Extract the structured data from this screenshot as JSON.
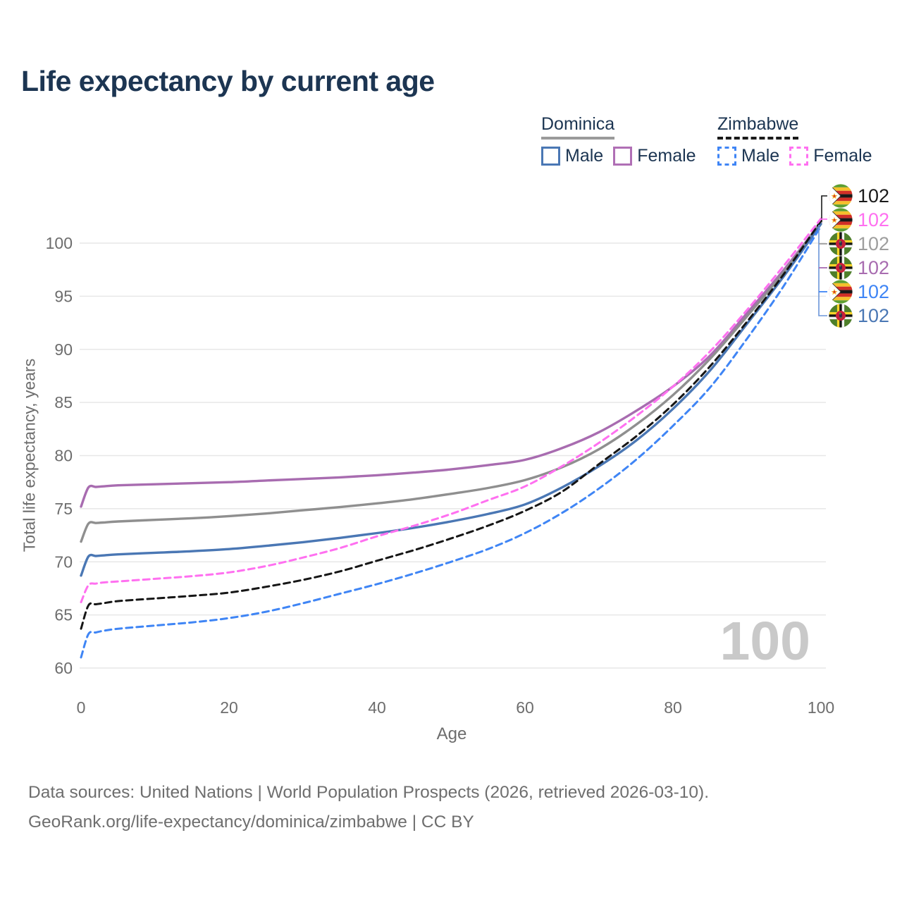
{
  "title": "Life expectancy by current age",
  "watermark": "100",
  "legend": {
    "groups": [
      {
        "label": "Dominica",
        "line_style": "solid",
        "line_color": "#9a9a9a",
        "items": [
          {
            "label": "Male",
            "color": "#4a77b4"
          },
          {
            "label": "Female",
            "color": "#b06fb5"
          }
        ]
      },
      {
        "label": "Zimbabwe",
        "line_style": "dashed",
        "line_color": "#1a1a1a",
        "items": [
          {
            "label": "Male",
            "color": "#3f85f5"
          },
          {
            "label": "Female",
            "color": "#ff70f0"
          }
        ]
      }
    ]
  },
  "y_axis": {
    "label": "Total life expectancy, years",
    "ticks": [
      60,
      65,
      70,
      75,
      80,
      85,
      90,
      95,
      100
    ]
  },
  "x_axis": {
    "label": "Age",
    "ticks": [
      0,
      20,
      40,
      60,
      80,
      100
    ]
  },
  "chart_data": {
    "type": "line",
    "title": "Life expectancy by current age",
    "xlabel": "Age",
    "ylabel": "Total life expectancy, years",
    "xlim": [
      0,
      100
    ],
    "ylim": [
      60,
      102.5
    ],
    "grid": "horizontal",
    "gridline_color": "#e7e7e7",
    "x": [
      0,
      1,
      2,
      3,
      5,
      10,
      15,
      20,
      25,
      30,
      35,
      40,
      45,
      50,
      55,
      60,
      65,
      70,
      75,
      80,
      85,
      90,
      95,
      100
    ],
    "series": [
      {
        "id": "dominica-female",
        "name": "Dominica Female",
        "country": "Dominica",
        "sex": "Female",
        "color": "#a86cb0",
        "dashed": false,
        "values": [
          75.2,
          77.0,
          77.05,
          77.1,
          77.2,
          77.3,
          77.4,
          77.5,
          77.65,
          77.8,
          77.95,
          78.15,
          78.4,
          78.7,
          79.1,
          79.6,
          80.7,
          82.2,
          84.2,
          86.5,
          89.4,
          93.4,
          97.5,
          101.95
        ]
      },
      {
        "id": "dominica-all",
        "name": "Dominica",
        "country": "Dominica",
        "sex": "Both",
        "color": "#8f8f8f",
        "dashed": false,
        "values": [
          71.9,
          73.6,
          73.65,
          73.7,
          73.8,
          73.95,
          74.1,
          74.3,
          74.55,
          74.85,
          75.15,
          75.5,
          75.9,
          76.4,
          76.95,
          77.7,
          78.9,
          80.6,
          82.9,
          85.7,
          89.1,
          93.1,
          97.3,
          102.0
        ]
      },
      {
        "id": "dominica-male",
        "name": "Dominica Male",
        "country": "Dominica",
        "sex": "Male",
        "color": "#4a77b4",
        "dashed": false,
        "values": [
          68.7,
          70.5,
          70.55,
          70.6,
          70.7,
          70.85,
          71.0,
          71.2,
          71.5,
          71.85,
          72.25,
          72.7,
          73.2,
          73.8,
          74.5,
          75.4,
          77.0,
          79.0,
          81.4,
          84.4,
          88.0,
          92.4,
          96.9,
          101.8
        ]
      },
      {
        "id": "zimbabwe-male",
        "name": "Zimbabwe Male",
        "country": "Zimbabwe",
        "sex": "Male",
        "color": "#3f85f5",
        "dashed": true,
        "values": [
          61.0,
          63.2,
          63.35,
          63.5,
          63.7,
          64.0,
          64.3,
          64.7,
          65.3,
          66.1,
          67.0,
          67.9,
          68.9,
          70.0,
          71.2,
          72.7,
          74.6,
          76.9,
          79.6,
          82.8,
          86.4,
          91.0,
          96.0,
          101.6
        ]
      },
      {
        "id": "zimbabwe-all",
        "name": "Zimbabwe",
        "country": "Zimbabwe",
        "sex": "Both",
        "color": "#161616",
        "dashed": true,
        "values": [
          63.7,
          65.9,
          66.0,
          66.1,
          66.3,
          66.55,
          66.8,
          67.1,
          67.65,
          68.3,
          69.1,
          70.1,
          71.1,
          72.2,
          73.4,
          74.8,
          76.6,
          79.2,
          81.8,
          84.8,
          88.4,
          92.6,
          97.1,
          102.1
        ]
      },
      {
        "id": "zimbabwe-female",
        "name": "Zimbabwe Female",
        "country": "Zimbabwe",
        "sex": "Female",
        "color": "#ff70f0",
        "dashed": true,
        "values": [
          66.2,
          67.8,
          67.95,
          68.05,
          68.15,
          68.4,
          68.65,
          69.0,
          69.6,
          70.4,
          71.3,
          72.4,
          73.4,
          74.5,
          75.8,
          77.1,
          79.0,
          81.2,
          83.7,
          86.5,
          89.8,
          93.7,
          97.9,
          102.3
        ]
      }
    ],
    "end_labels": [
      {
        "series": "Zimbabwe",
        "flag": "zimbabwe-flag",
        "value": "102",
        "color": "#1a1a1a"
      },
      {
        "series": "Zimbabwe Female",
        "flag": "zimbabwe-flag",
        "value": "102",
        "color": "#ff70f0"
      },
      {
        "series": "Dominica",
        "flag": "dominica-flag",
        "value": "102",
        "color": "#9e9e9e"
      },
      {
        "series": "Dominica Female",
        "flag": "dominica-flag",
        "value": "102",
        "color": "#a86cb0"
      },
      {
        "series": "Zimbabwe Male",
        "flag": "zimbabwe-flag",
        "value": "102",
        "color": "#3f85f5"
      },
      {
        "series": "Dominica Male",
        "flag": "dominica-flag",
        "value": "102",
        "color": "#4a77b4"
      }
    ]
  },
  "footer": {
    "line1": "Data sources: United Nations | World Population Prospects (2026, retrieved 2026-03-10).",
    "line2": "GeoRank.org/life-expectancy/dominica/zimbabwe | CC BY"
  }
}
